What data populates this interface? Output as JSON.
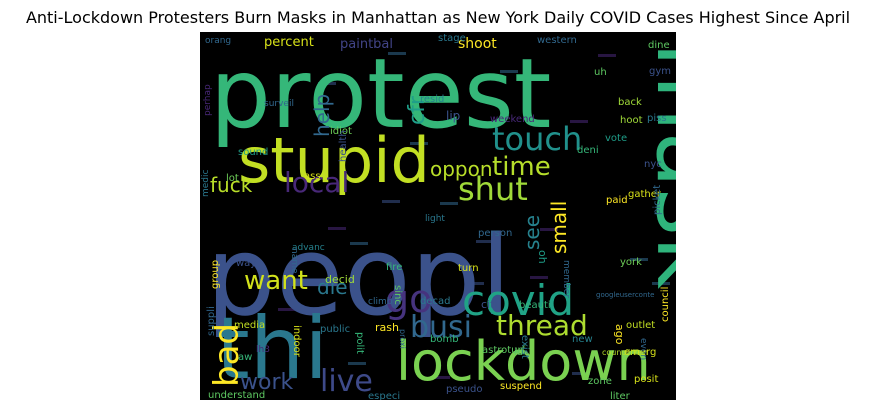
{
  "figure": {
    "title": "Anti-Lockdown Protesters Burn Masks in Manhattan as New York Daily COVID Cases Highest Since April"
  },
  "chart_data": {
    "type": "wordcloud",
    "title": "Anti-Lockdown Protesters Burn Masks in Manhattan as New York Daily COVID Cases Highest Since April",
    "words": [
      {
        "text": "protest",
        "weight": 100,
        "color": "#35b779"
      },
      {
        "text": "peopl",
        "weight": 98,
        "color": "#3b528b"
      },
      {
        "text": "mask",
        "weight": 92,
        "color": "#2fb47c"
      },
      {
        "text": "stupid",
        "weight": 68,
        "color": "#c2df23"
      },
      {
        "text": "thi",
        "weight": 74,
        "color": "#2a788e"
      },
      {
        "text": "lockdown",
        "weight": 58,
        "color": "#7ad151"
      },
      {
        "text": "covid",
        "weight": 42,
        "color": "#20a386"
      },
      {
        "text": "touch",
        "weight": 32,
        "color": "#21918c"
      },
      {
        "text": "time",
        "weight": 27,
        "color": "#b5de2b"
      },
      {
        "text": "local",
        "weight": 28,
        "color": "#482878"
      },
      {
        "text": "shut",
        "weight": 32,
        "color": "#a0da39"
      },
      {
        "text": "go",
        "weight": 38,
        "color": "#46337e"
      },
      {
        "text": "busi",
        "weight": 30,
        "color": "#31688e"
      },
      {
        "text": "thread",
        "weight": 28,
        "color": "#addc30"
      },
      {
        "text": "live",
        "weight": 30,
        "color": "#3e4a89"
      },
      {
        "text": "bad",
        "weight": 34,
        "color": "#fde725"
      },
      {
        "text": "want",
        "weight": 26,
        "color": "#d2e21b"
      },
      {
        "text": "work",
        "weight": 22,
        "color": "#3b528b"
      },
      {
        "text": "fuck",
        "weight": 20,
        "color": "#b8de29"
      },
      {
        "text": "die",
        "weight": 20,
        "color": "#2a788e"
      },
      {
        "text": "oppon",
        "weight": 20,
        "color": "#b8de29"
      },
      {
        "text": "help",
        "weight": 20,
        "color": "#31688e"
      },
      {
        "text": "cfr",
        "weight": 22,
        "color": "#1f9e89"
      },
      {
        "text": "small",
        "weight": 20,
        "color": "#fde725"
      },
      {
        "text": "see",
        "weight": 20,
        "color": "#26828e"
      },
      {
        "text": "shoot",
        "weight": 14,
        "color": "#fde725"
      },
      {
        "text": "percent",
        "weight": 13,
        "color": "#d8e219"
      },
      {
        "text": "paintbal",
        "weight": 13,
        "color": "#414487"
      },
      {
        "text": "stage",
        "weight": 10,
        "color": "#2a788e"
      },
      {
        "text": "western",
        "weight": 10,
        "color": "#31688e"
      },
      {
        "text": "dine",
        "weight": 10,
        "color": "#5ec962"
      },
      {
        "text": "orang",
        "weight": 9,
        "color": "#31688e"
      },
      {
        "text": "uh",
        "weight": 10,
        "color": "#5ec962"
      },
      {
        "text": "gym",
        "weight": 10,
        "color": "#3b528b"
      },
      {
        "text": "resid",
        "weight": 10,
        "color": "#26828e"
      },
      {
        "text": "lip",
        "weight": 12,
        "color": "#3b528b"
      },
      {
        "text": "weekend",
        "weight": 10,
        "color": "#482878"
      },
      {
        "text": "back",
        "weight": 10,
        "color": "#a0da39"
      },
      {
        "text": "piss",
        "weight": 10,
        "color": "#2a788e"
      },
      {
        "text": "hoot",
        "weight": 10,
        "color": "#a0da39"
      },
      {
        "text": "vote",
        "weight": 10,
        "color": "#1f9e89"
      },
      {
        "text": "surveil",
        "weight": 9,
        "color": "#31688e"
      },
      {
        "text": "idiot",
        "weight": 10,
        "color": "#6ece58"
      },
      {
        "text": "perhap",
        "weight": 9,
        "color": "#482878"
      },
      {
        "text": "sound",
        "weight": 10,
        "color": "#1f9e89"
      },
      {
        "text": "deni",
        "weight": 10,
        "color": "#35b779"
      },
      {
        "text": "nyc",
        "weight": 10,
        "color": "#3b528b"
      },
      {
        "text": "lot",
        "weight": 10,
        "color": "#6ece58"
      },
      {
        "text": "ass",
        "weight": 10,
        "color": "#d8e219"
      },
      {
        "text": "health",
        "weight": 10,
        "color": "#3b528b"
      },
      {
        "text": "medic",
        "weight": 9,
        "color": "#2a788e"
      },
      {
        "text": "paid",
        "weight": 10,
        "color": "#fde725"
      },
      {
        "text": "gather",
        "weight": 10,
        "color": "#d8e219"
      },
      {
        "text": "light",
        "weight": 9,
        "color": "#2a788e"
      },
      {
        "text": "person",
        "weight": 10,
        "color": "#31688e"
      },
      {
        "text": "oh",
        "weight": 11,
        "color": "#1f9e89"
      },
      {
        "text": "picket",
        "weight": 10,
        "color": "#31688e"
      },
      {
        "text": "advanc",
        "weight": 9,
        "color": "#26828e"
      },
      {
        "text": "group",
        "weight": 10,
        "color": "#fde725"
      },
      {
        "text": "way",
        "weight": 10,
        "color": "#3b528b"
      },
      {
        "text": "name",
        "weight": 9,
        "color": "#31688e"
      },
      {
        "text": "fire",
        "weight": 10,
        "color": "#35b779"
      },
      {
        "text": "turn",
        "weight": 10,
        "color": "#d8e219"
      },
      {
        "text": "member",
        "weight": 9,
        "color": "#31688e"
      },
      {
        "text": "york",
        "weight": 10,
        "color": "#6ece58"
      },
      {
        "text": "decid",
        "weight": 11,
        "color": "#a0da39"
      },
      {
        "text": "sinc",
        "weight": 10,
        "color": "#5ec962"
      },
      {
        "text": "council",
        "weight": 10,
        "color": "#fde725"
      },
      {
        "text": "suppli",
        "weight": 10,
        "color": "#31688e"
      },
      {
        "text": "climb",
        "weight": 9,
        "color": "#31688e"
      },
      {
        "text": "decad",
        "weight": 10,
        "color": "#2a788e"
      },
      {
        "text": "citi",
        "weight": 11,
        "color": "#3b528b"
      },
      {
        "text": "beauti",
        "weight": 10,
        "color": "#35b779"
      },
      {
        "text": "googleuserconte",
        "weight": 7,
        "color": "#31688e"
      },
      {
        "text": "media",
        "weight": 10,
        "color": "#c2df23"
      },
      {
        "text": "public",
        "weight": 10,
        "color": "#2a788e"
      },
      {
        "text": "outlet",
        "weight": 10,
        "color": "#c2df23"
      },
      {
        "text": "rash",
        "weight": 11,
        "color": "#fde725"
      },
      {
        "text": "bomb",
        "weight": 10,
        "color": "#35b779"
      },
      {
        "text": "astroturf",
        "weight": 10,
        "color": "#5ec962"
      },
      {
        "text": "ago",
        "weight": 11,
        "color": "#fde725"
      },
      {
        "text": "emerg",
        "weight": 10,
        "color": "#d8e219"
      },
      {
        "text": "lh3",
        "weight": 9,
        "color": "#482878"
      },
      {
        "text": "indoor",
        "weight": 10,
        "color": "#d8e219"
      },
      {
        "text": "polit",
        "weight": 10,
        "color": "#35b779"
      },
      {
        "text": "proxi",
        "weight": 8,
        "color": "#31688e"
      },
      {
        "text": "id",
        "weight": 10,
        "color": "#5ec962"
      },
      {
        "text": "exist",
        "weight": 10,
        "color": "#2a788e"
      },
      {
        "text": "new",
        "weight": 10,
        "color": "#26828e"
      },
      {
        "text": "even",
        "weight": 9,
        "color": "#31688e"
      },
      {
        "text": "councilman",
        "weight": 8,
        "color": "#b8de29"
      },
      {
        "text": "aw",
        "weight": 10,
        "color": "#35b779"
      },
      {
        "text": "understand",
        "weight": 10,
        "color": "#5ec962"
      },
      {
        "text": "especi",
        "weight": 10,
        "color": "#2a788e"
      },
      {
        "text": "pseudo",
        "weight": 10,
        "color": "#3b528b"
      },
      {
        "text": "suspend",
        "weight": 10,
        "color": "#fde725"
      },
      {
        "text": "zone",
        "weight": 10,
        "color": "#5ec962"
      },
      {
        "text": "liter",
        "weight": 10,
        "color": "#5ec962"
      },
      {
        "text": "posit",
        "weight": 10,
        "color": "#d8e219"
      }
    ]
  }
}
